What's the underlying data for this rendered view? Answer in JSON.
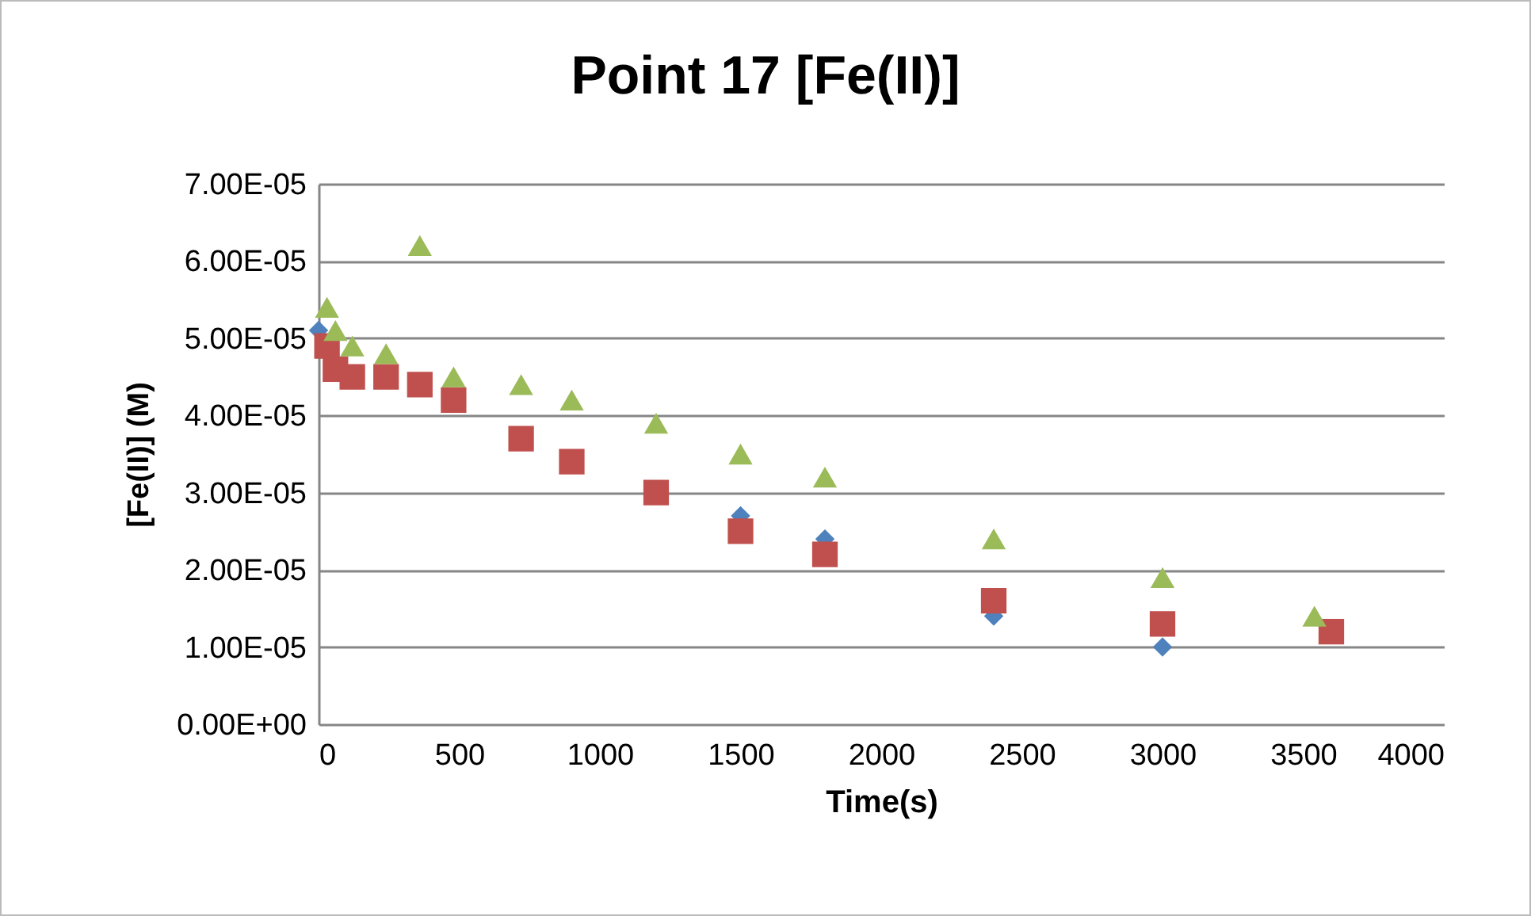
{
  "chart_data": {
    "type": "scatter",
    "title": "Point 17 [Fe(II)]",
    "xlabel": "Time(s)",
    "ylabel": "[Fe(II)] (M)",
    "xlim": [
      0,
      4000
    ],
    "xticks": [
      0,
      500,
      1000,
      1500,
      2000,
      2500,
      3000,
      3500,
      4000
    ],
    "ylim": [
      0,
      7e-05
    ],
    "yticks": [
      {
        "value": 0,
        "label": "0.00E+00"
      },
      {
        "value": 1e-05,
        "label": "1.00E-05"
      },
      {
        "value": 2e-05,
        "label": "2.00E-05"
      },
      {
        "value": 3e-05,
        "label": "3.00E-05"
      },
      {
        "value": 4e-05,
        "label": "4.00E-05"
      },
      {
        "value": 5e-05,
        "label": "5.00E-05"
      },
      {
        "value": 6e-05,
        "label": "6.00E-05"
      },
      {
        "value": 7e-05,
        "label": "7.00E-05"
      }
    ],
    "grid": "y",
    "series": [
      {
        "color": "#4f81bd",
        "marker": "diamond",
        "x": [
          0,
          30,
          60,
          120,
          240,
          360,
          480,
          720,
          900,
          1200,
          1500,
          1800,
          2400,
          3000
        ],
        "values": [
          5.1e-05,
          null,
          null,
          null,
          null,
          null,
          null,
          null,
          null,
          null,
          2.7e-05,
          2.4e-05,
          1.4e-05,
          1e-05
        ]
      },
      {
        "color": "#c0504d",
        "marker": "square",
        "x": [
          30,
          60,
          120,
          240,
          360,
          480,
          720,
          900,
          1200,
          1500,
          1800,
          2400,
          3000,
          3600
        ],
        "values": [
          4.9e-05,
          4.6e-05,
          4.5e-05,
          4.5e-05,
          4.4e-05,
          4.2e-05,
          3.7e-05,
          3.4e-05,
          3e-05,
          2.5e-05,
          2.2e-05,
          1.6e-05,
          1.3e-05,
          1.2e-05
        ]
      },
      {
        "color": "#9bbb59",
        "marker": "triangle",
        "x": [
          30,
          60,
          120,
          240,
          360,
          480,
          720,
          900,
          1200,
          1500,
          1800,
          2400,
          3000,
          3540
        ],
        "values": [
          5.4e-05,
          5.1e-05,
          4.9e-05,
          4.8e-05,
          6.2e-05,
          4.5e-05,
          4.4e-05,
          4.2e-05,
          3.9e-05,
          3.5e-05,
          3.2e-05,
          2.4e-05,
          1.9e-05,
          1.4e-05
        ]
      }
    ]
  }
}
